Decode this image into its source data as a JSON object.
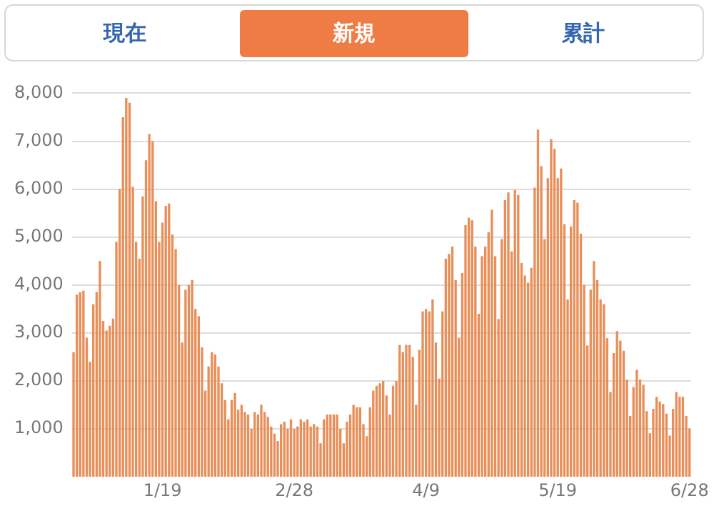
{
  "chart_data": {
    "type": "bar",
    "annotations": [
      "現在",
      "新規",
      "累計"
    ],
    "categories": [
      null,
      null,
      null,
      null,
      null,
      null,
      null,
      null,
      null,
      null,
      null,
      null,
      null,
      null,
      null,
      null,
      null,
      null,
      null,
      null,
      null,
      null,
      null,
      null,
      null,
      null,
      null,
      "1/19",
      null,
      null,
      null,
      null,
      null,
      null,
      null,
      null,
      null,
      null,
      null,
      null,
      null,
      null,
      null,
      null,
      null,
      null,
      null,
      null,
      null,
      null,
      null,
      null,
      null,
      null,
      null,
      null,
      null,
      null,
      null,
      null,
      null,
      null,
      null,
      null,
      null,
      null,
      null,
      "2/28",
      null,
      null,
      null,
      null,
      null,
      null,
      null,
      null,
      null,
      null,
      null,
      null,
      null,
      null,
      null,
      null,
      null,
      null,
      null,
      null,
      null,
      null,
      null,
      null,
      null,
      null,
      null,
      null,
      null,
      null,
      null,
      null,
      null,
      null,
      null,
      null,
      null,
      null,
      null,
      "4/9",
      null,
      null,
      null,
      null,
      null,
      null,
      null,
      null,
      null,
      null,
      null,
      null,
      null,
      null,
      null,
      null,
      null,
      null,
      null,
      null,
      null,
      null,
      null,
      null,
      null,
      null,
      null,
      null,
      null,
      null,
      null,
      null,
      null,
      null,
      null,
      null,
      null,
      null,
      null,
      "5/19",
      null,
      null,
      null,
      null,
      null,
      null,
      null,
      null,
      null,
      null,
      null,
      null,
      null,
      null,
      null,
      null,
      null,
      null,
      null,
      null,
      null,
      null,
      null,
      null,
      null,
      null,
      null,
      null,
      null,
      null,
      null,
      null,
      null,
      null,
      null,
      null,
      null,
      null,
      null,
      "6/28"
    ],
    "values": [
      2600,
      3800,
      3850,
      3880,
      2900,
      2400,
      3600,
      3850,
      4500,
      3250,
      3050,
      3150,
      3300,
      4900,
      6000,
      7500,
      7900,
      7800,
      6050,
      4900,
      4550,
      5850,
      6600,
      7150,
      7000,
      5750,
      4900,
      5300,
      5650,
      5700,
      5050,
      4750,
      4000,
      2800,
      3900,
      4000,
      4100,
      3500,
      3350,
      2700,
      1800,
      2300,
      2600,
      2550,
      2300,
      1950,
      1600,
      1200,
      1600,
      1750,
      1400,
      1500,
      1350,
      1300,
      1000,
      1350,
      1300,
      1500,
      1350,
      1250,
      1050,
      900,
      750,
      1100,
      1150,
      1000,
      1200,
      1000,
      1050,
      1200,
      1150,
      1200,
      1050,
      1100,
      1050,
      700,
      1200,
      1300,
      1300,
      1300,
      1300,
      1000,
      700,
      1150,
      1300,
      1500,
      1450,
      1450,
      1100,
      850,
      1450,
      1800,
      1900,
      1950,
      2000,
      1700,
      1300,
      1900,
      2000,
      2750,
      2600,
      2750,
      2750,
      2500,
      1500,
      2650,
      3450,
      3500,
      3450,
      3700,
      2800,
      2050,
      3450,
      4550,
      4650,
      4800,
      4100,
      2900,
      4250,
      5250,
      5400,
      5350,
      4800,
      3400,
      4600,
      4800,
      5100,
      5570,
      4600,
      3290,
      4960,
      5770,
      5930,
      4700,
      5980,
      5880,
      4460,
      4200,
      4050,
      4360,
      6030,
      7240,
      6480,
      4960,
      6230,
      7040,
      6840,
      6230,
      6430,
      5270,
      3700,
      5220,
      5770,
      5720,
      5070,
      4000,
      2740,
      3900,
      4500,
      4100,
      3700,
      3600,
      2890,
      1770,
      2580,
      3040,
      2840,
      2630,
      2030,
      1270,
      1870,
      2230,
      2030,
      1920,
      1370,
      910,
      1420,
      1670,
      1570,
      1520,
      1320,
      860,
      1420,
      1770,
      1670,
      1670,
      1270,
      1010
    ],
    "color": "#e88e58",
    "ylim": [
      0,
      8000
    ],
    "yticks": [
      {
        "value": 1000,
        "label": "1,000"
      },
      {
        "value": 2000,
        "label": "2,000"
      },
      {
        "value": 3000,
        "label": "3,000"
      },
      {
        "value": 4000,
        "label": "4,000"
      },
      {
        "value": 5000,
        "label": "5,000"
      },
      {
        "value": 6000,
        "label": "6,000"
      },
      {
        "value": 7000,
        "label": "7,000"
      },
      {
        "value": 8000,
        "label": "8,000"
      }
    ],
    "grid": "y",
    "legend": false
  }
}
